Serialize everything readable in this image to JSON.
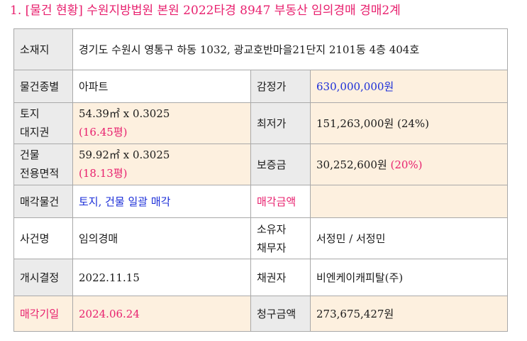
{
  "title": "1. [물건 현황] 수원지방법원 본원 2022타경 8947 부동산 임의경매 경매2계",
  "colors": {
    "accent_pink": "#e8206e",
    "accent_blue": "#1a2dd8",
    "label_bg": "#ebebeb",
    "value_bg": "#fdf0df"
  },
  "rows": {
    "address": {
      "label": "소재지",
      "value": "경기도 수원시 영통구 하동 1032, 광교호반마을21단지 2101동 4층 404호"
    },
    "type": {
      "label": "물건종별",
      "value": "아파트",
      "label2": "감정가",
      "value2": "630,000,000원"
    },
    "land": {
      "label_line1": "토지",
      "label_line2": "대지권",
      "value_line1": "54.39㎡ x 0.3025",
      "value_line2": "(16.45평)",
      "label2": "최저가",
      "value2": "151,263,000원 (24%)"
    },
    "building": {
      "label_line1": "건물",
      "label_line2": "전용면적",
      "value_line1": "59.92㎡ x 0.3025",
      "value_line2": "(18.13평)",
      "label2": "보증금",
      "value2_amount": "30,252,600원",
      "value2_percent": "(20%)"
    },
    "sale": {
      "label": "매각물건",
      "value": "토지, 건물 일괄 매각",
      "label2": "매각금액",
      "value2": ""
    },
    "case": {
      "label": "사건명",
      "value": "임의경매",
      "label2_line1": "소유자",
      "label2_line2": "채무자",
      "value2": "서정민 / 서정민"
    },
    "start": {
      "label": "개시결정",
      "value": "2022.11.15",
      "label2": "채권자",
      "value2": "비엔케이캐피탈(주)"
    },
    "date": {
      "label": "매각기일",
      "value": "2024.06.24",
      "label2": "청구금액",
      "value2": "273,675,427원"
    }
  }
}
